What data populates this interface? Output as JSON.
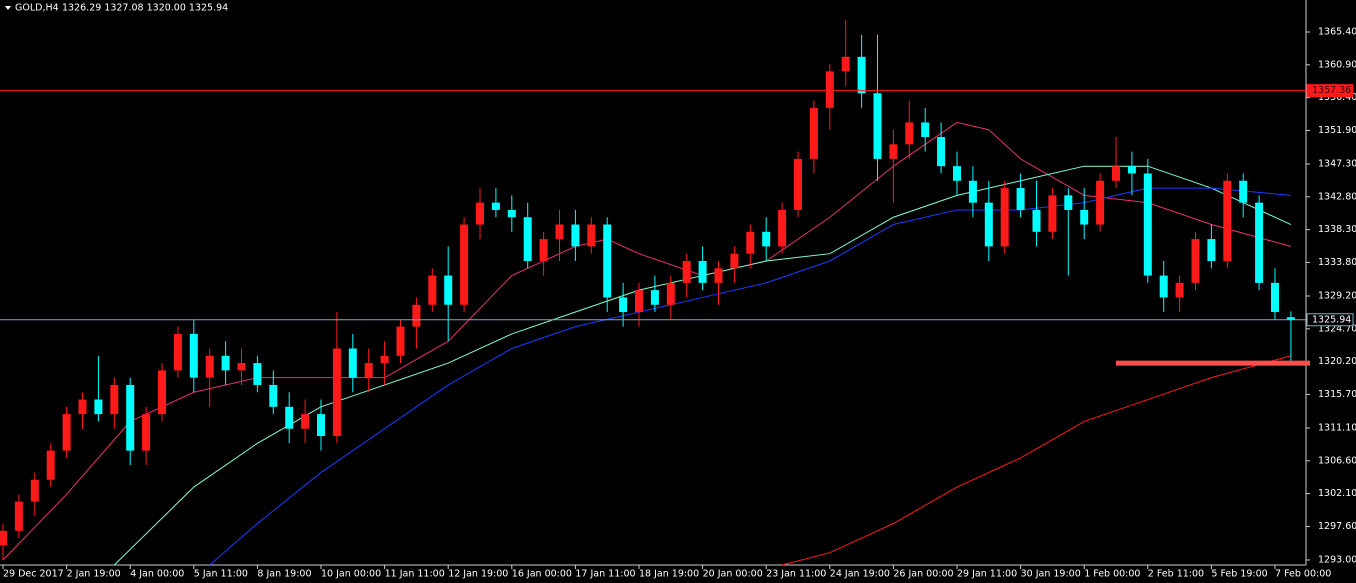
{
  "chart_data": {
    "type": "candlestick",
    "title": "GOLD,H4",
    "header_values": "1326.29 1327.08 1320.00 1325.94",
    "up_color": "#ff1a1a",
    "down_color": "#00ffff",
    "ylim": [
      1292.31,
      1369.79
    ],
    "yticks": [
      {
        "value": 1365.4,
        "label": "1365.40"
      },
      {
        "value": 1360.9,
        "label": "1360.90"
      },
      {
        "value": 1356.4,
        "label": "1356.40"
      },
      {
        "value": 1351.9,
        "label": "1351.90"
      },
      {
        "value": 1347.3,
        "label": "1347.30"
      },
      {
        "value": 1342.8,
        "label": "1342.80"
      },
      {
        "value": 1338.3,
        "label": "1338.30"
      },
      {
        "value": 1333.8,
        "label": "1333.80"
      },
      {
        "value": 1329.2,
        "label": "1329.20"
      },
      {
        "value": 1324.7,
        "label": "1324.70"
      },
      {
        "value": 1320.2,
        "label": "1320.20"
      },
      {
        "value": 1315.7,
        "label": "1315.70"
      },
      {
        "value": 1311.1,
        "label": "1311.10"
      },
      {
        "value": 1306.6,
        "label": "1306.60"
      },
      {
        "value": 1302.1,
        "label": "1302.10"
      },
      {
        "value": 1297.6,
        "label": "1297.60"
      },
      {
        "value": 1293,
        "label": "1293.00"
      }
    ],
    "categories": [
      "29 Dec 2017",
      null,
      null,
      null,
      "2 Jan 19:00",
      null,
      null,
      null,
      "4 Jan 00:00",
      null,
      null,
      null,
      "5 Jan 11:00",
      null,
      null,
      null,
      "8 Jan 19:00",
      null,
      null,
      null,
      "10 Jan 00:00",
      null,
      null,
      null,
      "11 Jan 11:00",
      null,
      null,
      null,
      "12 Jan 19:00",
      null,
      null,
      null,
      "16 Jan 00:00",
      null,
      null,
      null,
      "17 Jan 11:00",
      null,
      null,
      null,
      "18 Jan 19:00",
      null,
      null,
      null,
      "20 Jan 00:00",
      null,
      null,
      null,
      "23 Jan 11:00",
      null,
      null,
      null,
      "24 Jan 19:00",
      null,
      null,
      null,
      "26 Jan 00:00",
      null,
      null,
      null,
      "29 Jan 11:00",
      null,
      null,
      null,
      "30 Jan 19:00",
      null,
      null,
      null,
      "1 Feb 00:00",
      null,
      null,
      null,
      "2 Feb 11:00",
      null,
      null,
      null,
      "5 Feb 19:00",
      null,
      null,
      null,
      "7 Feb 00:00",
      null
    ],
    "candles": [
      [
        1295,
        1298,
        1293,
        1297
      ],
      [
        1297,
        1302,
        1296,
        1301
      ],
      [
        1301,
        1305,
        1299,
        1304
      ],
      [
        1304,
        1309,
        1303,
        1308
      ],
      [
        1308,
        1314,
        1307,
        1313
      ],
      [
        1313,
        1316,
        1311,
        1315
      ],
      [
        1315,
        1321,
        1312,
        1313
      ],
      [
        1313,
        1318,
        1311,
        1317
      ],
      [
        1317,
        1318,
        1306,
        1308
      ],
      [
        1308,
        1314,
        1306,
        1313
      ],
      [
        1313,
        1320,
        1312,
        1319
      ],
      [
        1319,
        1325,
        1318,
        1324
      ],
      [
        1324,
        1326,
        1316,
        1318
      ],
      [
        1318,
        1322,
        1314,
        1321
      ],
      [
        1321,
        1323,
        1317,
        1319
      ],
      [
        1319,
        1322,
        1317,
        1320
      ],
      [
        1320,
        1321,
        1316,
        1317
      ],
      [
        1317,
        1319,
        1313,
        1314
      ],
      [
        1314,
        1316,
        1309,
        1311
      ],
      [
        1311,
        1315,
        1309,
        1313
      ],
      [
        1313,
        1315,
        1308,
        1310
      ],
      [
        1310,
        1327,
        1309,
        1322
      ],
      [
        1322,
        1324,
        1316,
        1318
      ],
      [
        1318,
        1322,
        1316,
        1320
      ],
      [
        1320,
        1323,
        1317,
        1321
      ],
      [
        1321,
        1326,
        1320,
        1325
      ],
      [
        1325,
        1329,
        1322,
        1328
      ],
      [
        1328,
        1333,
        1327,
        1332
      ],
      [
        1332,
        1336,
        1323,
        1328
      ],
      [
        1328,
        1340,
        1327,
        1339
      ],
      [
        1339,
        1344,
        1337,
        1342
      ],
      [
        1342,
        1344,
        1340,
        1341
      ],
      [
        1341,
        1343,
        1338,
        1340
      ],
      [
        1340,
        1342,
        1333,
        1334
      ],
      [
        1334,
        1338,
        1332,
        1337
      ],
      [
        1337,
        1341,
        1334,
        1339
      ],
      [
        1339,
        1341,
        1334,
        1336
      ],
      [
        1336,
        1340,
        1335,
        1339
      ],
      [
        1339,
        1340,
        1327,
        1329
      ],
      [
        1329,
        1331,
        1325,
        1327
      ],
      [
        1327,
        1331,
        1325,
        1330
      ],
      [
        1330,
        1332,
        1327,
        1328
      ],
      [
        1328,
        1332,
        1326,
        1331
      ],
      [
        1331,
        1335,
        1329,
        1334
      ],
      [
        1334,
        1336,
        1330,
        1331
      ],
      [
        1331,
        1334,
        1328,
        1333
      ],
      [
        1333,
        1336,
        1331,
        1335
      ],
      [
        1335,
        1339,
        1333,
        1338
      ],
      [
        1338,
        1340,
        1334,
        1336
      ],
      [
        1336,
        1342,
        1335,
        1341
      ],
      [
        1341,
        1349,
        1340,
        1348
      ],
      [
        1348,
        1356,
        1346,
        1355
      ],
      [
        1355,
        1361,
        1352,
        1360
      ],
      [
        1360,
        1367,
        1358,
        1362
      ],
      [
        1362,
        1365,
        1355,
        1357
      ],
      [
        1357,
        1365,
        1345,
        1348
      ],
      [
        1348,
        1352,
        1342,
        1350
      ],
      [
        1350,
        1356,
        1348,
        1353
      ],
      [
        1353,
        1355,
        1349,
        1351
      ],
      [
        1351,
        1353,
        1346,
        1347
      ],
      [
        1347,
        1349,
        1343,
        1345
      ],
      [
        1345,
        1347,
        1340,
        1342
      ],
      [
        1342,
        1345,
        1334,
        1336
      ],
      [
        1336,
        1345,
        1335,
        1344
      ],
      [
        1344,
        1346,
        1340,
        1341
      ],
      [
        1341,
        1345,
        1336,
        1338
      ],
      [
        1338,
        1344,
        1337,
        1343
      ],
      [
        1343,
        1344,
        1332,
        1341
      ],
      [
        1341,
        1344,
        1337,
        1339
      ],
      [
        1339,
        1346,
        1338,
        1345
      ],
      [
        1345,
        1351,
        1344,
        1347
      ],
      [
        1347,
        1349,
        1343,
        1346
      ],
      [
        1346,
        1348,
        1331,
        1332
      ],
      [
        1332,
        1334,
        1327,
        1329
      ],
      [
        1329,
        1332,
        1327,
        1331
      ],
      [
        1331,
        1338,
        1330,
        1337
      ],
      [
        1337,
        1339,
        1333,
        1334
      ],
      [
        1334,
        1346,
        1333,
        1345
      ],
      [
        1345,
        1346,
        1340,
        1342
      ],
      [
        1342,
        1343,
        1330,
        1331
      ],
      [
        1331,
        1333,
        1326,
        1327
      ],
      [
        1326.29,
        1327.08,
        1320.0,
        1325.94
      ]
    ],
    "series": [
      {
        "color": "#e8306e",
        "x": [
          0,
          4,
          8,
          12,
          16,
          20,
          24,
          28,
          32,
          36,
          38,
          40,
          44,
          48,
          52,
          56,
          60,
          62,
          64,
          68,
          72,
          76,
          81
        ],
        "values": [
          1293,
          1302,
          1312,
          1316,
          1318,
          1318,
          1318,
          1323,
          1332,
          1336,
          1337,
          1335,
          1332,
          1334,
          1340,
          1347,
          1353,
          1352,
          1348,
          1343,
          1342,
          1339,
          1336
        ]
      },
      {
        "color": "#7fffd4",
        "x": [
          7,
          12,
          16,
          20,
          24,
          28,
          32,
          36,
          40,
          44,
          48,
          52,
          56,
          60,
          64,
          68,
          72,
          76,
          81
        ],
        "values": [
          1292.31,
          1303,
          1309,
          1314,
          1317,
          1320,
          1324,
          1327,
          1330,
          1332,
          1334,
          1335,
          1340,
          1343,
          1345,
          1347,
          1347,
          1344,
          1339
        ]
      },
      {
        "color": "#1a3cff",
        "x": [
          13,
          16,
          20,
          24,
          28,
          32,
          36,
          40,
          44,
          48,
          52,
          56,
          60,
          64,
          68,
          72,
          76,
          81
        ],
        "values": [
          1292.31,
          1298,
          1305,
          1311,
          1317,
          1322,
          1325,
          1327,
          1329,
          1331,
          1334,
          1339,
          1341,
          1341,
          1342,
          1344,
          1344,
          1343
        ]
      },
      {
        "color": "#ff1a1a",
        "x": [
          49,
          52,
          56,
          60,
          64,
          68,
          72,
          76,
          81
        ],
        "values": [
          1292.31,
          1294,
          1298,
          1303,
          1307,
          1312,
          1315,
          1318,
          1321
        ]
      }
    ],
    "hlines": [
      {
        "value": 1357.36,
        "label": "1357.36",
        "color": "#ff1a1a"
      },
      {
        "value": 1325.94,
        "label": "1325.94",
        "color": "#8ab"
      }
    ],
    "support_line": {
      "value": 1320.0,
      "x_from": 70,
      "color": "#ff4d4d"
    }
  }
}
